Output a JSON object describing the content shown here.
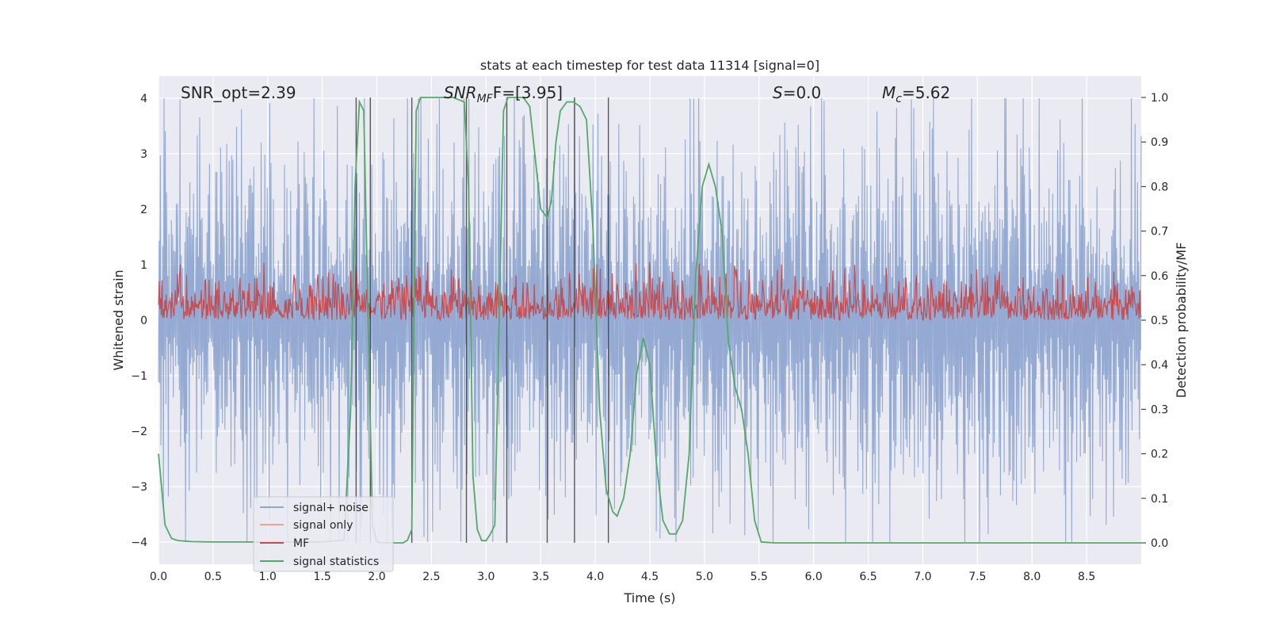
{
  "chart_data": {
    "type": "line",
    "title": "stats at each timestep for test data 11314 [signal=0]",
    "xlabel": "Time (s)",
    "ylabel": "Whitened strain",
    "y2label": "Detection probability/MF",
    "xlim": [
      0.0,
      9.0
    ],
    "ylim": [
      -4.4,
      4.4
    ],
    "y2lim": [
      -0.048,
      1.048
    ],
    "xticks": [
      "0.0",
      "0.5",
      "1.0",
      "1.5",
      "2.0",
      "2.5",
      "3.0",
      "3.5",
      "4.0",
      "4.5",
      "5.0",
      "5.5",
      "6.0",
      "6.5",
      "7.0",
      "7.5",
      "8.0",
      "8.5"
    ],
    "yticks": [
      "4",
      "3",
      "2",
      "1",
      "0",
      "−1",
      "−2",
      "−3",
      "−4"
    ],
    "y2ticks": [
      "1.0",
      "0.9",
      "0.8",
      "0.7",
      "0.6",
      "0.5",
      "0.4",
      "0.3",
      "0.2",
      "0.1",
      "0.0"
    ],
    "annotations": {
      "snr_opt": "SNR_opt=2.39",
      "snr_mf_main": "SNR",
      "snr_mf_sub": "MF",
      "snr_mf_rest": "F=[3.95]",
      "s_main": "S",
      "s_rest": "=0.0",
      "mc_main": "M",
      "mc_sub": "c",
      "mc_rest": "=5.62"
    },
    "legend": {
      "position": "lower-left",
      "entries": [
        {
          "label": "signal+ noise",
          "color": "#8fa6d1"
        },
        {
          "label": "signal only",
          "color": "#e8a98f"
        },
        {
          "label": "MF",
          "color": "#c44e52"
        },
        {
          "label": "signal statistics",
          "color": "#55a868"
        }
      ]
    },
    "series": {
      "signal_noise": {
        "name": "signal+ noise",
        "color": "#8fa6d1",
        "description_range": [
          -4.0,
          4.0
        ],
        "typical_amplitude": 2.0
      },
      "mf": {
        "name": "MF",
        "color": "#c44e52",
        "baseline": 0.5,
        "range": [
          0.5,
          0.62
        ]
      },
      "signal_statistics": {
        "name": "signal statistics",
        "color": "#55a868",
        "x": [
          0.0,
          0.06,
          0.12,
          0.18,
          0.3,
          0.5,
          1.0,
          1.5,
          1.7,
          1.76,
          1.8,
          1.84,
          1.88,
          1.92,
          1.96,
          2.0,
          2.04,
          2.08,
          2.12,
          2.16,
          2.2,
          2.24,
          2.28,
          2.32,
          2.36,
          2.4,
          2.45,
          2.5,
          2.6,
          2.7,
          2.8,
          2.84,
          2.88,
          2.92,
          2.96,
          3.0,
          3.04,
          3.08,
          3.12,
          3.16,
          3.2,
          3.24,
          3.28,
          3.34,
          3.4,
          3.5,
          3.56,
          3.6,
          3.64,
          3.68,
          3.74,
          3.8,
          3.86,
          3.92,
          3.98,
          4.04,
          4.1,
          4.16,
          4.2,
          4.26,
          4.32,
          4.38,
          4.44,
          4.5,
          4.56,
          4.62,
          4.68,
          4.74,
          4.8,
          4.86,
          4.92,
          4.98,
          5.04,
          5.1,
          5.16,
          5.22,
          5.28,
          5.34,
          5.4,
          5.46,
          5.52,
          5.58,
          5.64,
          5.7,
          5.76,
          5.82,
          6.0,
          7.0,
          8.0,
          9.0
        ],
        "y": [
          0.2,
          0.04,
          0.01,
          0.005,
          0.003,
          0.002,
          0.002,
          0.002,
          0.006,
          0.3,
          0.8,
          0.99,
          0.97,
          0.5,
          0.04,
          0.003,
          0.0,
          0.0,
          0.0,
          0.0,
          0.0,
          0.0,
          0.006,
          0.03,
          0.97,
          1.0,
          1.0,
          1.0,
          1.0,
          1.0,
          0.99,
          0.8,
          0.15,
          0.03,
          0.005,
          0.005,
          0.02,
          0.04,
          0.5,
          0.97,
          1.0,
          1.0,
          1.0,
          1.0,
          0.98,
          0.75,
          0.73,
          0.77,
          0.9,
          0.97,
          0.99,
          0.99,
          0.98,
          0.95,
          0.7,
          0.3,
          0.12,
          0.07,
          0.06,
          0.1,
          0.2,
          0.38,
          0.46,
          0.4,
          0.18,
          0.05,
          0.02,
          0.02,
          0.05,
          0.2,
          0.6,
          0.8,
          0.85,
          0.8,
          0.7,
          0.45,
          0.35,
          0.3,
          0.2,
          0.05,
          0.002,
          0.001,
          0.0,
          0.0,
          0.0,
          0.0,
          0.0,
          0.0,
          0.0,
          0.0
        ]
      }
    },
    "vertical_lines_x": [
      1.81,
      1.94,
      2.32,
      2.82,
      3.19,
      3.56,
      3.81,
      4.12
    ]
  }
}
